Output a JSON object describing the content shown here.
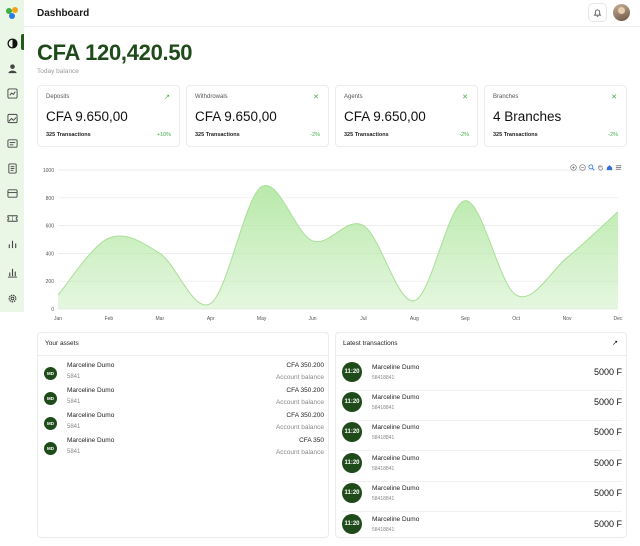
{
  "header": {
    "title": "Dashboard"
  },
  "balance": {
    "amount": "CFA 120,420.50",
    "label": "Today balance"
  },
  "cards": [
    {
      "title": "Deposits",
      "value": "CFA 9.650,00",
      "transactions": "325 Transactions",
      "change": "+10%",
      "icon": "arrow-up-right-icon"
    },
    {
      "title": "Withdrowals",
      "value": "CFA 9.650,00",
      "transactions": "325 Transactions",
      "change": "-2%",
      "icon": "close-icon"
    },
    {
      "title": "Agents",
      "value": "CFA 9.650,00",
      "transactions": "325 Transactions",
      "change": "-2%",
      "icon": "close-icon"
    },
    {
      "title": "Branches",
      "value": "4 Branches",
      "transactions": "325 Transactions",
      "change": "-2%",
      "icon": "close-icon"
    }
  ],
  "chart_data": {
    "type": "area",
    "categories": [
      "Jan",
      "Feb",
      "Mar",
      "Apr",
      "May",
      "Jun",
      "Jul",
      "Aug",
      "Sep",
      "Oct",
      "Nov",
      "Dec"
    ],
    "series": [
      {
        "values": [
          100,
          510,
          400,
          40,
          880,
          490,
          600,
          60,
          780,
          100,
          370,
          700
        ]
      }
    ],
    "yticks": [
      0,
      200,
      400,
      600,
      800,
      1000
    ],
    "ylim": [
      0,
      1000
    ],
    "grid": true,
    "color": "#b5e8a6"
  },
  "assets": {
    "title": "Your assets",
    "items": [
      {
        "initials": "MD",
        "name": "Marceline Dumo",
        "code": "5841",
        "amount": "CFA 350.200",
        "label": "Account balance"
      },
      {
        "initials": "MD",
        "name": "Marceline Dumo",
        "code": "5841",
        "amount": "CFA 350.200",
        "label": "Account balance"
      },
      {
        "initials": "MD",
        "name": "Marceline Dumo",
        "code": "5841",
        "amount": "CFA 350.200",
        "label": "Account balance"
      },
      {
        "initials": "MD",
        "name": "Marceline Dumo",
        "code": "5841",
        "amount": "CFA 350",
        "label": "Account balance"
      }
    ]
  },
  "transactions": {
    "title": "Latest transactions",
    "items": [
      {
        "time": "11:20",
        "name": "Marceline Dumo",
        "code": "58418841",
        "amount": "5000 F"
      },
      {
        "time": "11:20",
        "name": "Marceline Dumo",
        "code": "58418841",
        "amount": "5000 F"
      },
      {
        "time": "11:20",
        "name": "Marceline Dumo",
        "code": "58418841",
        "amount": "5000 F"
      },
      {
        "time": "11:20",
        "name": "Marceline Dumo",
        "code": "58418841",
        "amount": "5000 F"
      },
      {
        "time": "11:20",
        "name": "Marceline Dumo",
        "code": "58418841",
        "amount": "5000 F"
      },
      {
        "time": "11:20",
        "name": "Marceline Dumo",
        "code": "58418841",
        "amount": "5000 F"
      }
    ]
  },
  "colors": {
    "brand": "#1f4a1a",
    "accent": "#3db043",
    "sidebar": "#eaf6e6"
  }
}
